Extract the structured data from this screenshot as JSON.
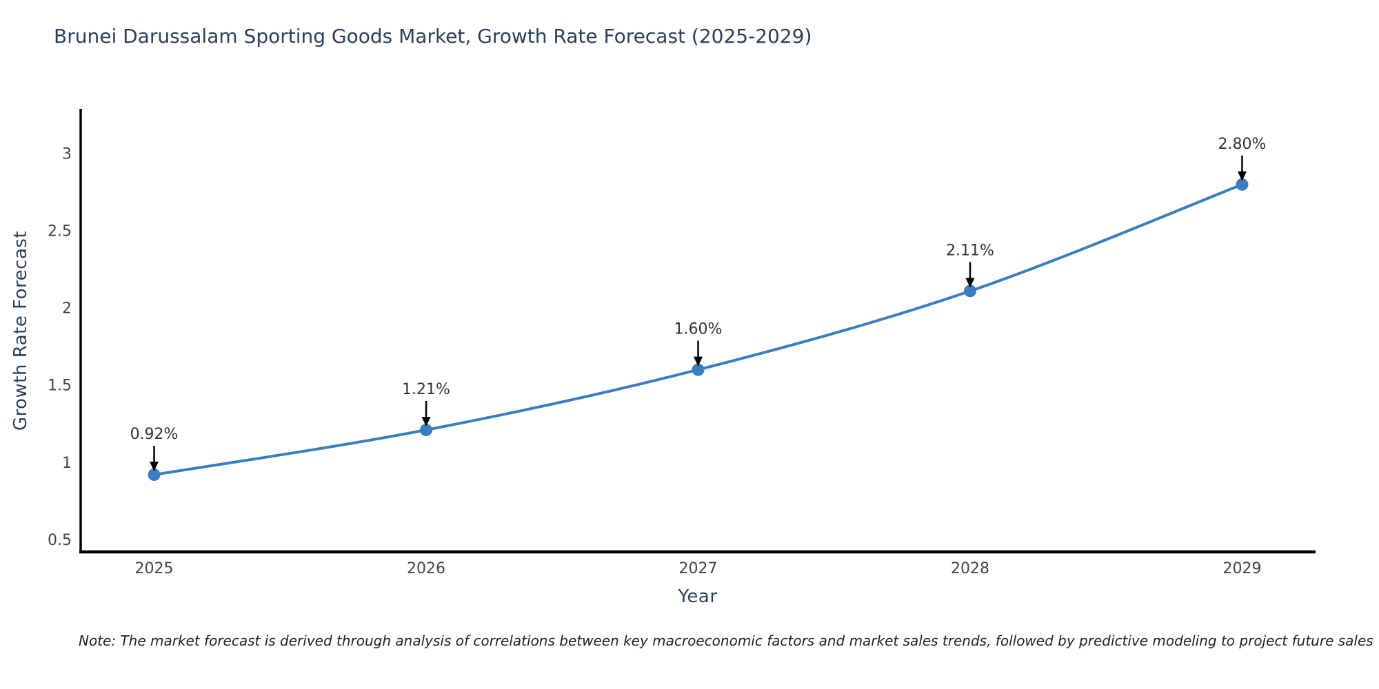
{
  "title": {
    "text": "Brunei Darussalam Sporting Goods Market, Growth Rate Forecast (2025-2029)"
  },
  "footnote": {
    "text": "Note: The market forecast is derived through analysis of correlations between key macroeconomic factors and market sales trends, followed by predictive modeling to project future sales"
  },
  "colors": {
    "background": "#ffffff",
    "line": "#3a7ebf",
    "marker": "#3a7ebf",
    "axis": "#000000",
    "title_text": "#2a3f5f",
    "tick_text": "#444444",
    "annotation_text": "#333333",
    "arrow": "#000000"
  },
  "chart_data": {
    "type": "line",
    "line_shape": "spline",
    "title": "Brunei Darussalam Sporting Goods Market, Growth Rate Forecast (2025-2029)",
    "xlabel": "Year",
    "ylabel": "Growth Rate Forecast",
    "x": [
      2025,
      2026,
      2027,
      2028,
      2029
    ],
    "x_tick_labels": [
      "2025",
      "2026",
      "2027",
      "2028",
      "2029"
    ],
    "series": [
      {
        "name": "Growth Rate Forecast",
        "values": [
          0.92,
          1.21,
          1.6,
          2.11,
          2.8
        ]
      }
    ],
    "point_labels": [
      "0.92%",
      "1.21%",
      "1.60%",
      "2.11%",
      "2.80%"
    ],
    "y_ticks": [
      0.5,
      1,
      1.5,
      2,
      2.5,
      3
    ],
    "y_tick_labels": [
      "0.5",
      "1",
      "1.5",
      "2",
      "2.5",
      "3"
    ],
    "xlim": [
      2024.73,
      2029.27
    ],
    "ylim": [
      0.42,
      3.29
    ],
    "grid": false,
    "legend": "none",
    "annotations_have_arrows": true,
    "markers": true
  }
}
